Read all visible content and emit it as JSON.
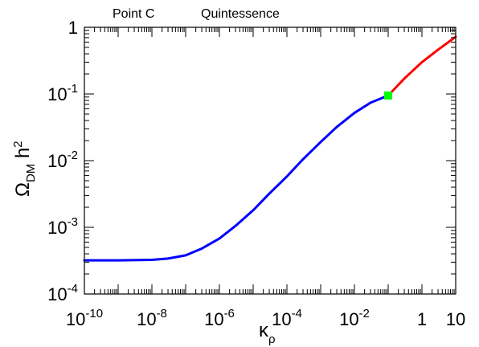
{
  "header": {
    "left_title": "Point C",
    "right_title": "Quintessence"
  },
  "axes": {
    "x_symbol": "κ",
    "x_subscript": "ρ",
    "y_symbol": "Ω",
    "y_subscript": "DM",
    "y_suffix": " h",
    "y_superscript": "2"
  },
  "chart_data": {
    "type": "line",
    "title": "",
    "xlabel": "κρ",
    "ylabel": "ΩDM h2",
    "xscale": "log",
    "yscale": "log",
    "xlim": [
      1e-10,
      10
    ],
    "ylim": [
      0.0001,
      1
    ],
    "grid": false,
    "x_ticks": [
      {
        "value": 1e-10,
        "base": "10",
        "exp": "-10"
      },
      {
        "value": 1e-08,
        "base": "10",
        "exp": "-8"
      },
      {
        "value": 1e-06,
        "base": "10",
        "exp": "-6"
      },
      {
        "value": 0.0001,
        "base": "10",
        "exp": "-4"
      },
      {
        "value": 0.01,
        "base": "10",
        "exp": "-2"
      },
      {
        "value": 1,
        "base": "1",
        "exp": ""
      },
      {
        "value": 10,
        "base": "10",
        "exp": ""
      }
    ],
    "y_ticks": [
      {
        "value": 0.0001,
        "base": "10",
        "exp": "-4"
      },
      {
        "value": 0.001,
        "base": "10",
        "exp": "-3"
      },
      {
        "value": 0.01,
        "base": "10",
        "exp": "-2"
      },
      {
        "value": 0.1,
        "base": "10",
        "exp": "-1"
      },
      {
        "value": 1,
        "base": "1",
        "exp": ""
      }
    ],
    "series": [
      {
        "color": "#0000ff",
        "x": [
          1e-10,
          1e-09,
          1e-08,
          3e-08,
          1e-07,
          3e-07,
          1e-06,
          3e-06,
          1e-05,
          3e-05,
          0.0001,
          0.0003,
          0.001,
          0.003,
          0.01,
          0.03,
          0.1
        ],
        "y": [
          0.00032,
          0.00032,
          0.000325,
          0.00034,
          0.00038,
          0.00048,
          0.00068,
          0.00105,
          0.0018,
          0.0032,
          0.0058,
          0.0105,
          0.019,
          0.032,
          0.052,
          0.074,
          0.095
        ]
      },
      {
        "color": "#ff0000",
        "x": [
          0.1,
          0.3,
          1,
          3,
          10
        ],
        "y": [
          0.095,
          0.17,
          0.3,
          0.46,
          0.72
        ]
      }
    ],
    "markers": [
      {
        "shape": "square",
        "color": "#00ff00",
        "x": 0.1,
        "y": 0.095
      }
    ]
  }
}
